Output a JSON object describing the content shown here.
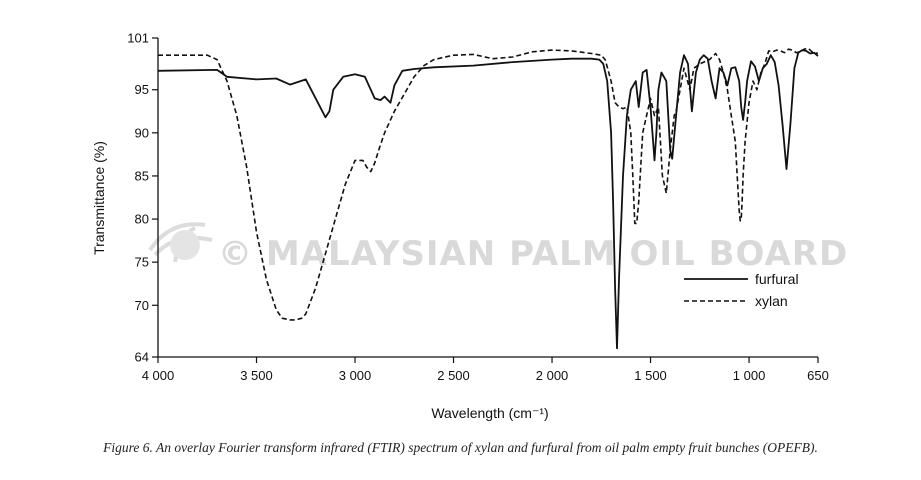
{
  "chart_data": {
    "type": "line",
    "xlabel": "Wavelength (cm⁻¹)",
    "ylabel": "Transmittance (%)",
    "xlim": [
      4000,
      650
    ],
    "x_reversed": true,
    "ylim": [
      64,
      101
    ],
    "x_ticks": [
      4000,
      3500,
      3000,
      2500,
      2000,
      1500,
      1000,
      650
    ],
    "x_tick_labels": [
      "4 000",
      "3 500",
      "3 000",
      "2 500",
      "2 000",
      "1 500",
      "1 000",
      "650"
    ],
    "y_ticks": [
      64,
      70,
      75,
      80,
      85,
      90,
      95,
      101
    ],
    "y_tick_labels": [
      "64",
      "70",
      "75",
      "80",
      "85",
      "90",
      "95",
      "101"
    ],
    "grid": false,
    "legend_position": "bottom-right",
    "series": [
      {
        "name": "furfural",
        "style": "solid",
        "x": [
          4000,
          3700,
          3650,
          3500,
          3400,
          3330,
          3250,
          3150,
          3130,
          3110,
          3060,
          3000,
          2950,
          2900,
          2870,
          2850,
          2820,
          2800,
          2760,
          2700,
          2600,
          2400,
          2200,
          2000,
          1900,
          1800,
          1760,
          1740,
          1720,
          1700,
          1690,
          1680,
          1670,
          1660,
          1640,
          1620,
          1600,
          1575,
          1560,
          1540,
          1520,
          1500,
          1480,
          1470,
          1460,
          1445,
          1420,
          1400,
          1390,
          1370,
          1350,
          1330,
          1310,
          1290,
          1270,
          1250,
          1230,
          1210,
          1190,
          1170,
          1150,
          1130,
          1110,
          1090,
          1070,
          1050,
          1040,
          1030,
          1020,
          1010,
          990,
          970,
          950,
          930,
          910,
          890,
          870,
          850,
          830,
          810,
          790,
          770,
          750,
          730,
          710,
          690,
          670,
          650
        ],
        "values": [
          97.2,
          97.3,
          96.5,
          96.2,
          96.3,
          95.6,
          96.2,
          91.8,
          92.5,
          95,
          96.5,
          96.8,
          96.5,
          94,
          93.8,
          94.2,
          93.5,
          95.5,
          97.2,
          97.4,
          97.6,
          97.8,
          98.2,
          98.5,
          98.6,
          98.6,
          98.5,
          98,
          96,
          90,
          82,
          72,
          65,
          73,
          85,
          92,
          95,
          96,
          93,
          97,
          97.3,
          93,
          86.8,
          90,
          95,
          97,
          96,
          88,
          87,
          92,
          97,
          99,
          98,
          92.5,
          97,
          98.5,
          99,
          98.6,
          96,
          94,
          97.5,
          97,
          95.5,
          97.5,
          97.6,
          96,
          93,
          91.5,
          93.5,
          96,
          98.3,
          97.7,
          96,
          97.5,
          98,
          99,
          98.2,
          95.5,
          91,
          85.8,
          91,
          97.5,
          99.3,
          99.6,
          99.5,
          99.2,
          99.3,
          98.9
        ]
      },
      {
        "name": "xylan",
        "style": "dashed",
        "x": [
          4000,
          3750,
          3700,
          3680,
          3650,
          3600,
          3550,
          3500,
          3450,
          3400,
          3370,
          3330,
          3300,
          3270,
          3250,
          3200,
          3150,
          3100,
          3050,
          3000,
          2960,
          2940,
          2920,
          2900,
          2880,
          2850,
          2800,
          2750,
          2700,
          2650,
          2600,
          2500,
          2400,
          2300,
          2200,
          2100,
          2000,
          1900,
          1800,
          1750,
          1730,
          1700,
          1680,
          1660,
          1640,
          1620,
          1600,
          1590,
          1580,
          1570,
          1560,
          1540,
          1520,
          1500,
          1480,
          1460,
          1440,
          1420,
          1400,
          1380,
          1370,
          1350,
          1330,
          1300,
          1280,
          1250,
          1200,
          1170,
          1150,
          1130,
          1110,
          1090,
          1070,
          1060,
          1050,
          1045,
          1040,
          1035,
          1030,
          1020,
          1000,
          980,
          960,
          940,
          920,
          900,
          880,
          860,
          840,
          820,
          800,
          780,
          760,
          740,
          720,
          700,
          680,
          650
        ],
        "values": [
          99,
          99,
          98.5,
          97.5,
          96,
          92,
          86,
          78.5,
          73,
          69.5,
          68.5,
          68.3,
          68.3,
          68.5,
          69,
          72,
          76,
          80,
          84,
          86.8,
          86.8,
          86,
          85.5,
          86.5,
          88,
          90,
          92.5,
          94.5,
          96.5,
          97.8,
          98.5,
          99,
          99.1,
          98.6,
          98.8,
          99.4,
          99.6,
          99.5,
          99.2,
          99,
          98.5,
          96,
          93.5,
          93,
          92.8,
          93,
          90,
          85,
          79.5,
          79.5,
          82,
          90,
          92,
          94,
          92,
          93,
          85,
          83,
          88,
          92,
          92.5,
          95,
          97.5,
          95,
          97.5,
          98,
          98.5,
          99.2,
          98.5,
          97,
          95,
          92,
          89,
          85,
          81,
          79.8,
          80,
          82,
          85,
          89,
          93.5,
          96,
          95,
          97,
          98,
          99.5,
          99.4,
          99.6,
          99.5,
          99.3,
          99.7,
          99.6,
          99.3,
          99.4,
          99.7,
          99.8,
          99.4,
          99.2
        ]
      }
    ],
    "watermark": "© MALAYSIAN PALM OIL BOARD"
  },
  "caption": "Figure 6. An overlay Fourier transform infrared (FTIR) spectrum of xylan and furfural from oil palm empty fruit bunches (OPEFB)."
}
